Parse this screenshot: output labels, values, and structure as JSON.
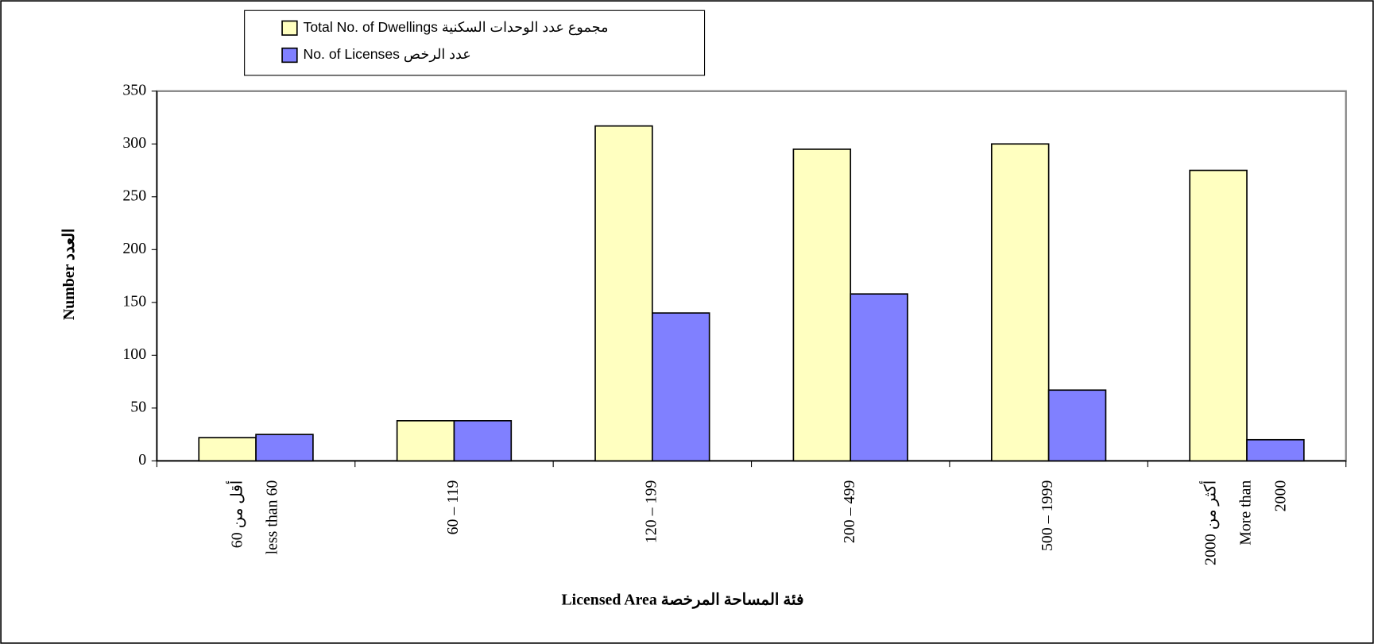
{
  "chart_data": {
    "type": "bar",
    "legend_entries": {
      "position": "top-left"
    },
    "y_axis_title": "Number العدد",
    "x_axis_title": "Licensed Area فئة المساحة المرخصة",
    "categories": [
      [
        "أقل من 60",
        "less than 60"
      ],
      [
        "60  –  119"
      ],
      [
        "120 – 199"
      ],
      [
        "200 – 499"
      ],
      [
        "500 – 1999"
      ],
      [
        "أكثر من 2000",
        "More than",
        "2000"
      ]
    ],
    "series": [
      {
        "name": "Total No. of  Dwellings مجموع عدد  الوحدات السكنية",
        "color": "#ffffc0",
        "values": [
          22,
          38,
          317,
          295,
          300,
          275
        ]
      },
      {
        "name": "No. of  Licenses عدد الرخص",
        "color": "#8080ff",
        "values": [
          25,
          38,
          140,
          158,
          67,
          20
        ]
      }
    ],
    "ylim": [
      0,
      350
    ],
    "yticks": [
      0,
      50,
      100,
      150,
      200,
      250,
      300,
      350
    ],
    "grid": false
  }
}
